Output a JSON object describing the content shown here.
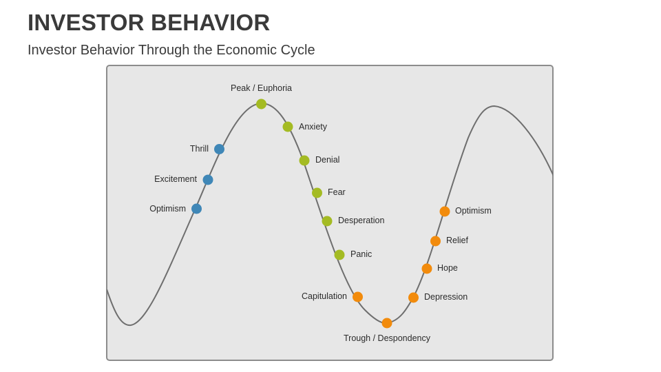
{
  "header": {
    "title": "INVESTOR BEHAVIOR",
    "subtitle": "Investor Behavior Through the Economic Cycle"
  },
  "colors": {
    "blue": "#3f87b7",
    "green": "#a4bb23",
    "orange": "#f28b0c",
    "curve": "#6e6e6e",
    "panel_bg": "#e7e7e7"
  },
  "stages": [
    {
      "label": "Optimism",
      "color": "blue"
    },
    {
      "label": "Excitement",
      "color": "blue"
    },
    {
      "label": "Thrill",
      "color": "blue"
    },
    {
      "label": "Peak / Euphoria",
      "color": "green"
    },
    {
      "label": "Anxiety",
      "color": "green"
    },
    {
      "label": "Denial",
      "color": "green"
    },
    {
      "label": "Fear",
      "color": "green"
    },
    {
      "label": "Desperation",
      "color": "green"
    },
    {
      "label": "Panic",
      "color": "green"
    },
    {
      "label": "Capitulation",
      "color": "orange"
    },
    {
      "label": "Trough / Despondency",
      "color": "orange"
    },
    {
      "label": "Depression",
      "color": "orange"
    },
    {
      "label": "Hope",
      "color": "orange"
    },
    {
      "label": "Relief",
      "color": "orange"
    },
    {
      "label": "Optimism",
      "color": "orange"
    }
  ]
}
